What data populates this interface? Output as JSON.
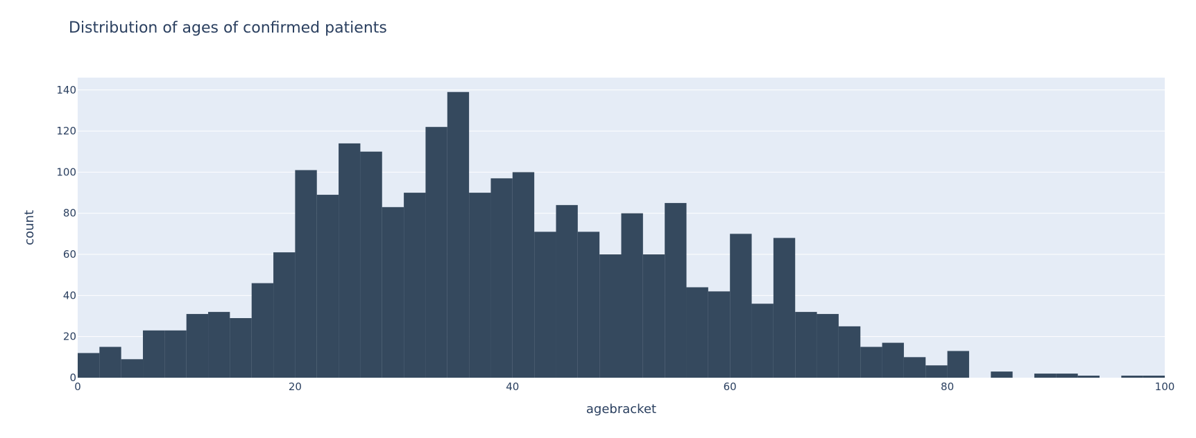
{
  "chart_data": {
    "type": "bar",
    "title": "Distribution of ages of confirmed patients",
    "xlabel": "agebracket",
    "ylabel": "count",
    "xlim": [
      0,
      100
    ],
    "ylim": [
      0,
      146
    ],
    "x_ticks": [
      0,
      20,
      40,
      60,
      80,
      100
    ],
    "y_ticks": [
      0,
      20,
      40,
      60,
      80,
      100,
      120,
      140
    ],
    "bin_width": 2,
    "bin_starts": [
      0,
      2,
      4,
      6,
      8,
      10,
      12,
      14,
      16,
      18,
      20,
      22,
      24,
      26,
      28,
      30,
      32,
      34,
      36,
      38,
      40,
      42,
      44,
      46,
      48,
      50,
      52,
      54,
      56,
      58,
      60,
      62,
      64,
      66,
      68,
      70,
      72,
      74,
      76,
      78,
      80,
      82,
      84,
      86,
      88,
      90,
      92,
      94,
      96,
      98
    ],
    "values": [
      12,
      15,
      9,
      23,
      23,
      31,
      32,
      29,
      46,
      61,
      101,
      89,
      114,
      110,
      83,
      90,
      122,
      139,
      90,
      97,
      100,
      71,
      84,
      71,
      60,
      80,
      60,
      85,
      44,
      42,
      70,
      36,
      68,
      32,
      31,
      25,
      15,
      17,
      10,
      6,
      13,
      0,
      3,
      0,
      2,
      2,
      1,
      0,
      1,
      1
    ],
    "grid": true,
    "colors": {
      "bar": "#35495e",
      "plot_bg": "#e5ecf6",
      "grid": "#ffffff",
      "text": "#2a3f5f"
    }
  }
}
